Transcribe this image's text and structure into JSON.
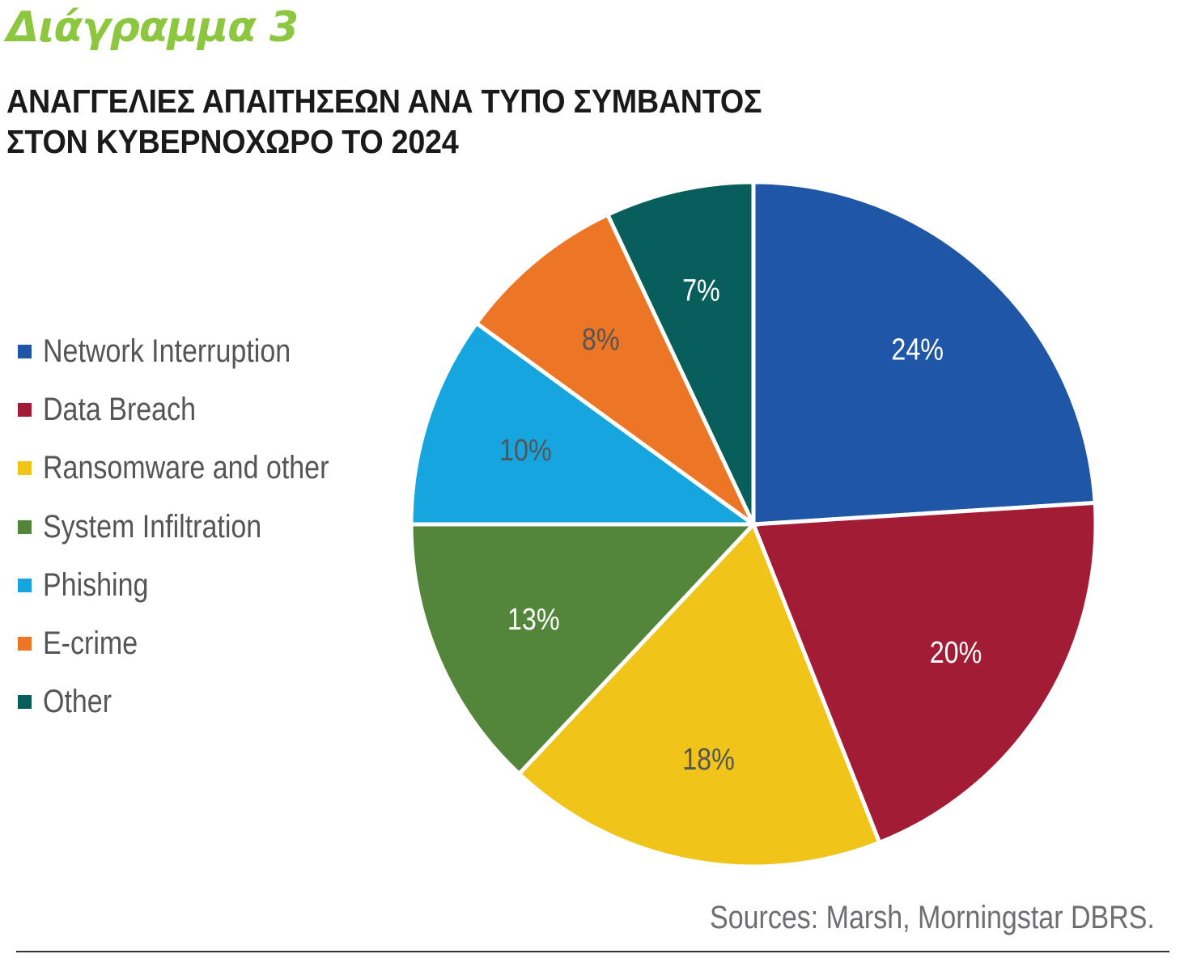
{
  "header": {
    "figure_label": "Διάγραμμα 3",
    "title_line1": "ΑΝΑΓΓΕΛΙΕΣ ΑΠΑΙΤΗΣΕΩΝ ΑΝΑ ΤΥΠΟ ΣΥΜΒΑΝΤΟΣ",
    "title_line2": "ΣΤΟΝ ΚΥΒΕΡΝΟΧΩΡΟ ΤΟ 2024"
  },
  "footer": {
    "source": "Sources: Marsh, Morningstar DBRS."
  },
  "colors": {
    "figure_label": "#8dc63f",
    "separator": "#ffffff"
  },
  "chart_data": {
    "type": "pie",
    "title": "ΑΝΑΓΓΕΛΙΕΣ ΑΠΑΙΤΗΣΕΩΝ ΑΝΑ ΤΥΠΟ ΣΥΜΒΑΝΤΟΣ ΣΤΟΝ ΚΥΒΕΡΝΟΧΩΡΟ ΤΟ 2024",
    "start": "top",
    "direction": "clockwise",
    "legend_position": "left",
    "unit": "%",
    "slices": [
      {
        "key": "network-interruption",
        "label": "Network Interruption",
        "value": 24,
        "display": "24%",
        "color": "#1f57a6",
        "label_color": "#ffffff"
      },
      {
        "key": "data-breach",
        "label": "Data Breach",
        "value": 20,
        "display": "20%",
        "color": "#a31c36",
        "label_color": "#ffffff"
      },
      {
        "key": "ransomware-and-other",
        "label": "Ransomware and other",
        "value": 18,
        "display": "18%",
        "color": "#f0c419",
        "label_color": "#555555"
      },
      {
        "key": "system-infiltration",
        "label": "System Infiltration",
        "value": 13,
        "display": "13%",
        "color": "#53853a",
        "label_color": "#ffffff"
      },
      {
        "key": "phishing",
        "label": "Phishing",
        "value": 10,
        "display": "10%",
        "color": "#16a5df",
        "label_color": "#555555"
      },
      {
        "key": "e-crime",
        "label": "E-crime",
        "value": 8,
        "display": "8%",
        "color": "#ec7625",
        "label_color": "#555555"
      },
      {
        "key": "other",
        "label": "Other",
        "value": 7,
        "display": "7%",
        "color": "#085e5a",
        "label_color": "#ffffff"
      }
    ]
  }
}
